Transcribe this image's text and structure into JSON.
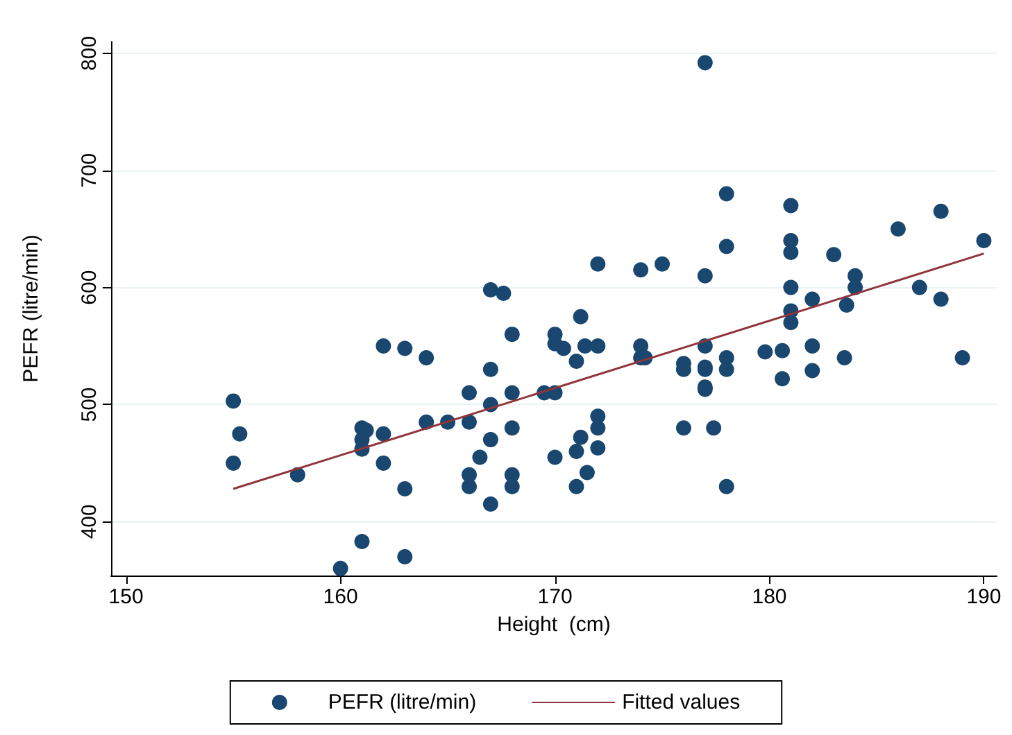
{
  "chart_data": {
    "type": "scatter",
    "xlabel": "Height  (cm)",
    "ylabel": "PEFR (litre/min)",
    "xlim": [
      149.3,
      190.6
    ],
    "ylim": [
      354,
      810
    ],
    "xticks": [
      150,
      160,
      170,
      180,
      190
    ],
    "yticks": [
      400,
      500,
      600,
      700,
      800
    ],
    "grid": "y",
    "legend": "bottom",
    "marker": "circle",
    "series": [
      {
        "name": "PEFR (litre/min)",
        "color": "#1a476f",
        "x": [
          155,
          155,
          155.3,
          158,
          160,
          161,
          161,
          161,
          161,
          161.2,
          162,
          162,
          162,
          163,
          163,
          163,
          164,
          164,
          165,
          166,
          166,
          166,
          166,
          166.5,
          167,
          167,
          167,
          167,
          167,
          167.6,
          168,
          168,
          168,
          168,
          168,
          169.5,
          170,
          170,
          170,
          170,
          170.4,
          171,
          171,
          171,
          171.2,
          171.2,
          171.4,
          171.5,
          172,
          172,
          172,
          172,
          172,
          174,
          174,
          174,
          174.2,
          175,
          176,
          176,
          176,
          177,
          177,
          177,
          177,
          177,
          177,
          177,
          177.4,
          178,
          178,
          178,
          178,
          178,
          179.8,
          180.6,
          180.6,
          181,
          181,
          181,
          181,
          181,
          181,
          182,
          182,
          182,
          183,
          183.5,
          183.6,
          184,
          184,
          186,
          187,
          188,
          188,
          189,
          190
        ],
        "values": [
          503,
          450,
          475,
          440,
          360,
          383,
          480,
          470,
          462,
          478,
          550,
          475,
          450,
          548,
          428,
          370,
          540,
          485,
          485,
          510,
          485,
          440,
          430,
          455,
          598,
          530,
          500,
          470,
          415,
          595,
          560,
          510,
          480,
          440,
          430,
          510,
          560,
          552,
          510,
          455,
          548,
          537,
          460,
          430,
          575,
          472,
          550,
          442,
          620,
          550,
          490,
          480,
          463,
          615,
          550,
          540,
          540,
          620,
          535,
          530,
          480,
          792,
          610,
          550,
          532,
          530,
          515,
          513,
          480,
          680,
          635,
          540,
          530,
          430,
          545,
          522,
          546,
          670,
          640,
          630,
          600,
          580,
          570,
          590,
          550,
          529,
          628,
          540,
          585,
          610,
          600,
          650,
          600,
          665,
          590,
          540,
          640
        ]
      },
      {
        "name": "Fitted values",
        "color": "#90353b",
        "type": "line",
        "marker": "none",
        "x": [
          155,
          190
        ],
        "values": [
          428,
          629
        ]
      }
    ]
  }
}
